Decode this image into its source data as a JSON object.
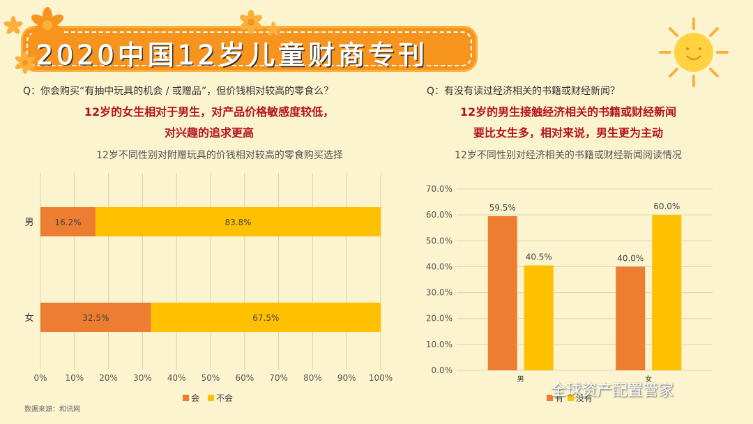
{
  "banner": {
    "title": "2020中国12岁儿童财商专刊"
  },
  "left": {
    "question": "Q：你会购买“有抽中玩具的机会 / 或赠品”，但价钱相对较高的零食么？",
    "highlight_line1": "12岁的女生相对于男生，对产品价格敏感度较低，",
    "highlight_line2": "对兴趣的追求更高"
  },
  "right": {
    "question": "Q：有没有读过经济相关的书籍或财经新闻？",
    "highlight_line1": "12岁的男生接触经济相关的书籍或财经新闻",
    "highlight_line2": "要比女生多，相对来说，男生更为主动"
  },
  "source": "数据来源：和讯网",
  "watermark": "全球资产配置管家",
  "colors": {
    "orange": "#ed7d31",
    "yellow": "#ffc000",
    "banner": "#f7941d",
    "background": "#fbf4cf"
  },
  "chart_data": [
    {
      "type": "bar",
      "orientation": "horizontal",
      "stacked": true,
      "title": "12岁不同性别对附赠玩具的价钱相对较高的零食购买选择",
      "categories": [
        "男",
        "女"
      ],
      "series": [
        {
          "name": "会",
          "values": [
            16.2,
            32.5
          ],
          "labels": [
            "16.2%",
            "32.5%"
          ]
        },
        {
          "name": "不会",
          "values": [
            83.8,
            67.5
          ],
          "labels": [
            "83.8%",
            "67.5%"
          ]
        }
      ],
      "xlim": [
        0,
        100
      ],
      "xticks": [
        "0%",
        "10%",
        "20%",
        "30%",
        "40%",
        "50%",
        "60%",
        "70%",
        "80%",
        "90%",
        "100%"
      ],
      "grid": true,
      "legend": "bottom"
    },
    {
      "type": "bar",
      "orientation": "vertical",
      "stacked": false,
      "title": "12岁不同性别对经济相关的书籍或财经新闻阅读情况",
      "categories": [
        "男",
        "女"
      ],
      "series": [
        {
          "name": "有",
          "values": [
            59.5,
            40.0
          ],
          "labels": [
            "59.5%",
            "40.0%"
          ]
        },
        {
          "name": "没有",
          "values": [
            40.5,
            60.0
          ],
          "labels": [
            "40.5%",
            "60.0%"
          ]
        }
      ],
      "ylim": [
        0,
        70
      ],
      "yticks": [
        "0.0%",
        "10.0%",
        "20.0%",
        "30.0%",
        "40.0%",
        "50.0%",
        "60.0%",
        "70.0%"
      ],
      "grid": true,
      "legend": "bottom"
    }
  ]
}
